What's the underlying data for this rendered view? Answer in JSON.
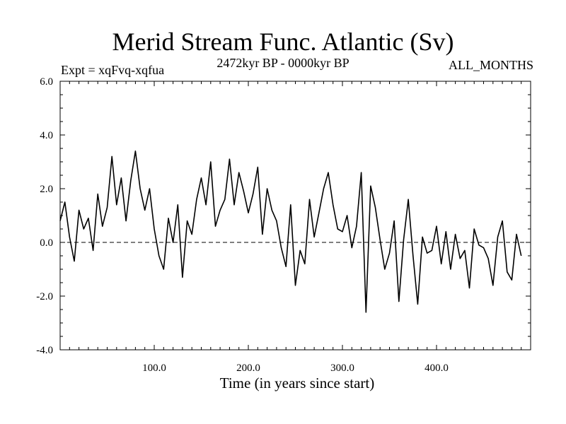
{
  "chart_data": {
    "type": "line",
    "title": "Merid Stream Func. Atlantic (Sv)",
    "subtitle_left": "Expt = xqFvq-xqfua",
    "subtitle_center": "2472kyr BP - 0000kyr BP",
    "subtitle_right": "ALL_MONTHS",
    "xlabel": "Time (in years since start)",
    "ylabel": "",
    "xlim": [
      0,
      500
    ],
    "ylim": [
      -4.0,
      6.0
    ],
    "x_ticks": [
      100,
      200,
      300,
      400
    ],
    "x_tick_labels": [
      "100.0",
      "200.0",
      "300.0",
      "400.0"
    ],
    "y_ticks": [
      -4,
      -2,
      0,
      2,
      4,
      6
    ],
    "y_tick_labels": [
      "-4.0",
      "-2.0",
      "0.0",
      "2.0",
      "4.0",
      "6.0"
    ],
    "zero_line": 0.0,
    "series": [
      {
        "name": "Merid Stream Func. Atlantic",
        "x_start": 0,
        "x_step": 5,
        "values": [
          0.8,
          1.5,
          0.2,
          -0.7,
          1.2,
          0.5,
          0.9,
          -0.3,
          1.8,
          0.6,
          1.3,
          3.2,
          1.4,
          2.4,
          0.8,
          2.3,
          3.4,
          2.0,
          1.2,
          2.0,
          0.5,
          -0.5,
          -1.0,
          0.9,
          0.0,
          1.4,
          -1.3,
          0.8,
          0.3,
          1.6,
          2.4,
          1.4,
          3.0,
          0.6,
          1.2,
          1.6,
          3.1,
          1.4,
          2.6,
          1.9,
          1.1,
          1.8,
          2.8,
          0.3,
          2.0,
          1.2,
          0.8,
          -0.2,
          -0.9,
          1.4,
          -1.6,
          -0.3,
          -0.8,
          1.6,
          0.2,
          1.1,
          2.0,
          2.6,
          1.4,
          0.5,
          0.4,
          1.0,
          -0.2,
          0.6,
          2.6,
          -2.6,
          2.1,
          1.3,
          0.1,
          -1.0,
          -0.4,
          0.8,
          -2.2,
          0.1,
          1.6,
          -0.5,
          -2.3,
          0.2,
          -0.4,
          -0.3,
          0.6,
          -0.8,
          0.4,
          -1.0,
          0.3,
          -0.6,
          -0.3,
          -1.7,
          0.5,
          -0.1,
          -0.2,
          -0.6,
          -1.6,
          0.2,
          0.8,
          -1.1,
          -1.4,
          0.3,
          -0.5
        ]
      }
    ]
  }
}
